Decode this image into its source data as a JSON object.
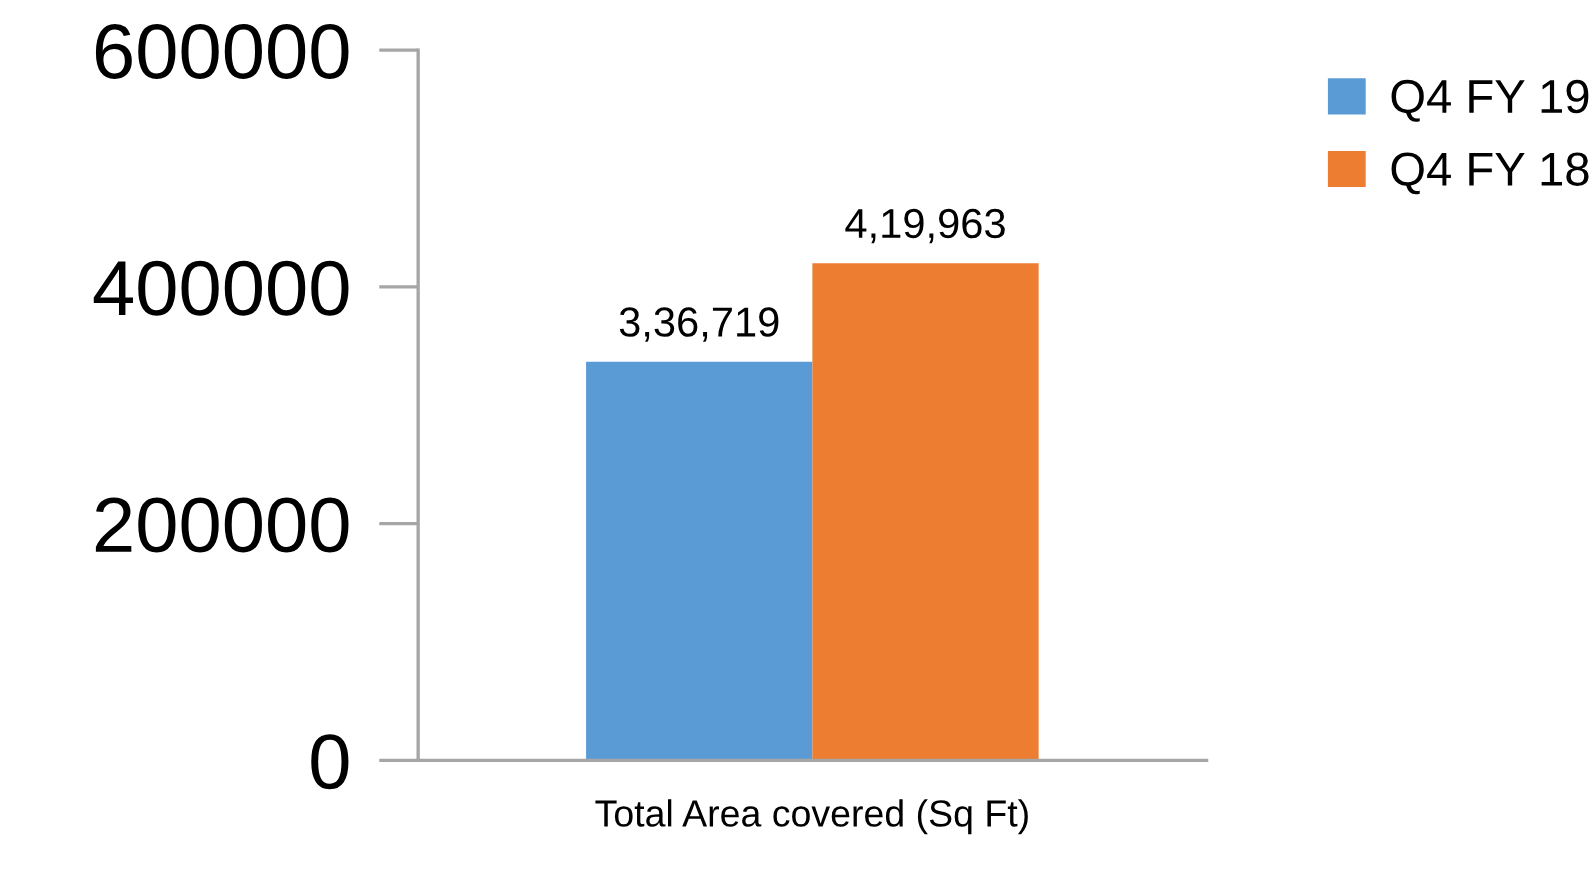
{
  "chart_data": {
    "type": "bar",
    "categories": [
      "Total Area covered (Sq Ft)"
    ],
    "series": [
      {
        "name": "Q4 FY 19",
        "color": "#5b9bd5",
        "values": [
          336719
        ],
        "value_labels": [
          "3,36,719"
        ]
      },
      {
        "name": "Q4 FY 18",
        "color": "#ed7d31",
        "values": [
          419963
        ],
        "value_labels": [
          "4,19,963"
        ]
      }
    ],
    "ylim": [
      0,
      600000
    ],
    "yticks": [
      0,
      200000,
      400000,
      600000
    ],
    "grid": false,
    "legend": "top right"
  }
}
